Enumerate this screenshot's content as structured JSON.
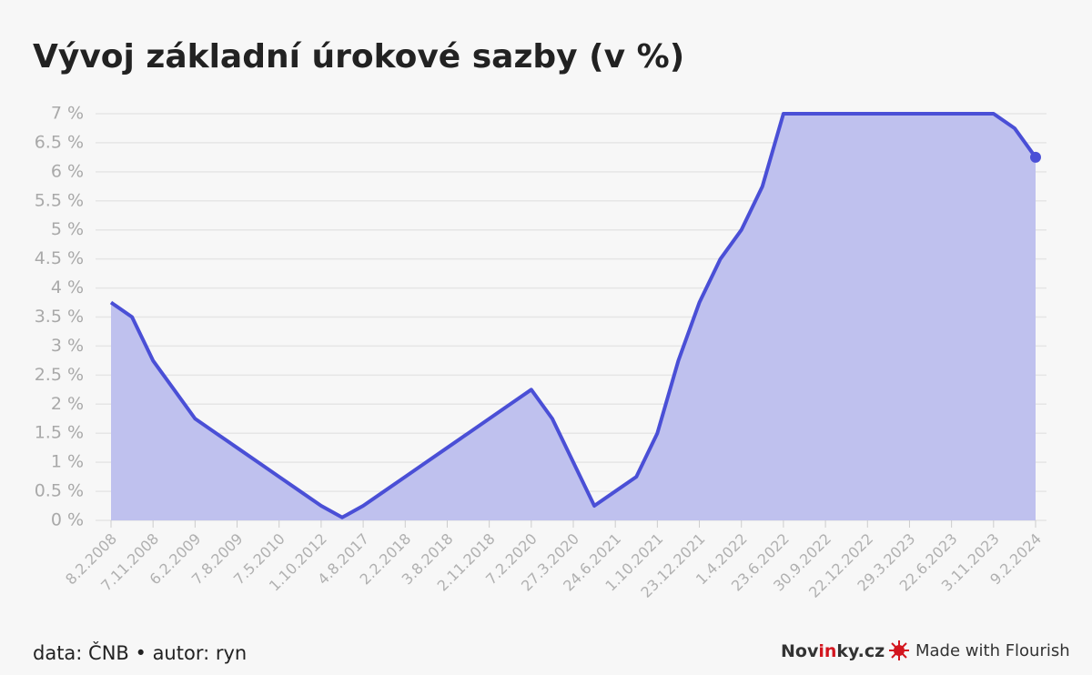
{
  "chart_data": {
    "type": "area",
    "title": "Vývoj základní úrokové sazby (v %)",
    "categories": [
      "8.2.2008",
      null,
      "7.11.2008",
      null,
      "6.2.2009",
      null,
      "7.8.2009",
      null,
      "7.5.2010",
      null,
      "1.10.2012",
      null,
      "4.8.2017",
      null,
      "2.2.2018",
      null,
      "3.8.2018",
      null,
      "2.11.2018",
      null,
      "7.2.2020",
      null,
      "27.3.2020",
      null,
      "24.6.2021",
      null,
      "1.10.2021",
      null,
      "23.12.2021",
      null,
      "1.4.2022",
      null,
      "23.6.2022",
      null,
      "30.9.2022",
      null,
      "22.12.2022",
      null,
      "29.3.2023",
      null,
      "22.6.2023",
      null,
      "3.11.2023",
      null,
      "9.2.2024"
    ],
    "values": [
      3.75,
      3.5,
      2.75,
      2.25,
      1.75,
      1.5,
      1.25,
      1.0,
      0.75,
      0.5,
      0.25,
      0.05,
      0.25,
      0.5,
      0.75,
      1.0,
      1.25,
      1.5,
      1.75,
      2.0,
      2.25,
      1.75,
      1.0,
      0.25,
      0.5,
      0.75,
      1.5,
      2.75,
      3.75,
      4.5,
      5.0,
      5.75,
      7.0,
      7.0,
      7.0,
      7.0,
      7.0,
      7.0,
      7.0,
      7.0,
      7.0,
      7.0,
      7.0,
      6.75,
      6.25
    ],
    "color": "#4a4fd6",
    "fill_color": "#bfc1ee",
    "ylim": [
      0,
      7
    ],
    "yticks": [
      {
        "value": 0,
        "label": "0 %"
      },
      {
        "value": 0.5,
        "label": "0.5 %"
      },
      {
        "value": 1,
        "label": "1 %"
      },
      {
        "value": 1.5,
        "label": "1.5 %"
      },
      {
        "value": 2,
        "label": "2 %"
      },
      {
        "value": 2.5,
        "label": "2.5 %"
      },
      {
        "value": 3,
        "label": "3 %"
      },
      {
        "value": 3.5,
        "label": "3.5 %"
      },
      {
        "value": 4,
        "label": "4 %"
      },
      {
        "value": 4.5,
        "label": "4.5 %"
      },
      {
        "value": 5,
        "label": "5 %"
      },
      {
        "value": 5.5,
        "label": "5.5 %"
      },
      {
        "value": 6,
        "label": "6 %"
      },
      {
        "value": 6.5,
        "label": "6.5 %"
      },
      {
        "value": 7,
        "label": "7 %"
      }
    ],
    "grid": true
  },
  "footer": {
    "source": "data: ČNB • autor: ryn",
    "brand": [
      "Nov",
      "in",
      "ky.cz"
    ],
    "flourish": "Made with Flourish"
  }
}
